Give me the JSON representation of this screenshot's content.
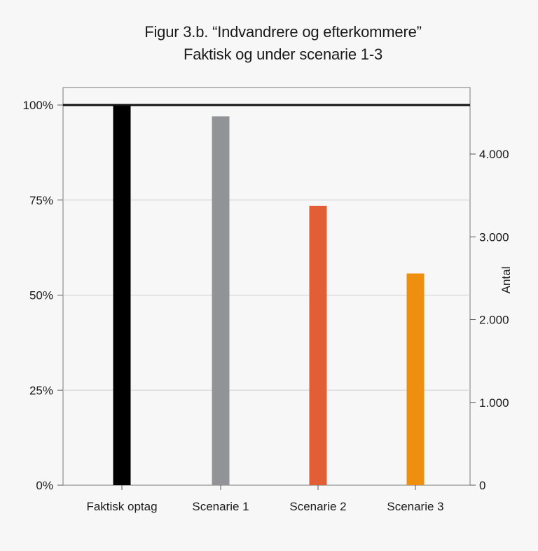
{
  "chart_data": {
    "type": "bar",
    "title": "Figur 3.b. “Indvandrere og efterkommere”",
    "subtitle": "Faktisk og under scenarie 1-3",
    "categories": [
      "Faktisk optag",
      "Scenarie 1",
      "Scenarie 2",
      "Scenarie 3"
    ],
    "values": [
      1.0,
      0.97,
      0.735,
      0.557
    ],
    "colors": [
      "#000000",
      "#929396",
      "#e25f36",
      "#ef8f0f"
    ],
    "y_left": {
      "ylim": [
        0,
        1.0
      ],
      "ticks": [
        0,
        0.25,
        0.5,
        0.75,
        1.0
      ],
      "tick_labels": [
        "0%",
        "25%",
        "50%",
        "75%",
        "100%"
      ]
    },
    "y_right": {
      "label": "Antal",
      "ylim": [
        0,
        4600
      ],
      "ticks": [
        0,
        1000,
        2000,
        3000,
        4000
      ],
      "tick_labels": [
        "0",
        "1.000",
        "2.000",
        "3.000",
        "4.000"
      ]
    },
    "reference_line": 1.0,
    "grid": true
  }
}
